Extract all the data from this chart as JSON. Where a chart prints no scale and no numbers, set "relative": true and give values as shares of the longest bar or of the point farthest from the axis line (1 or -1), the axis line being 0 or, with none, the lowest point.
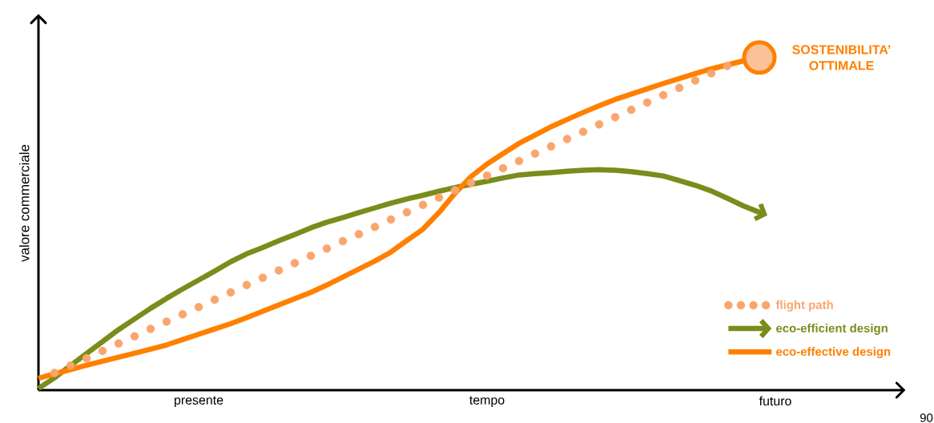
{
  "chart_data": {
    "type": "line",
    "relative": true,
    "ylabel": "valore commerciale",
    "categories": [
      null,
      null,
      null,
      null,
      null,
      null,
      null,
      null,
      null,
      null,
      "presente",
      null,
      null,
      null,
      null,
      null,
      null,
      null,
      null,
      null,
      null,
      null,
      null,
      null,
      null,
      null,
      null,
      null,
      "tempo",
      null,
      null,
      null,
      null,
      null,
      null,
      null,
      null,
      null,
      null,
      null,
      null,
      null,
      null,
      null,
      null,
      null,
      "futuro",
      null,
      null,
      null,
      null,
      null,
      null,
      null,
      null
    ],
    "legend": "bottom right",
    "annotations": [
      "SOSTENIBILITA’ OTTIMALE",
      "90"
    ],
    "series": [
      {
        "name": "flight path",
        "color": "#f9a66c",
        "type": "scatter",
        "marker": "circle",
        "values": [
          null,
          0.052,
          0.074,
          0.096,
          0.118,
          0.14,
          0.162,
          0.184,
          0.206,
          0.228,
          0.25,
          0.272,
          0.294,
          0.316,
          0.338,
          0.36,
          0.382,
          0.404,
          0.426,
          0.448,
          0.469,
          0.491,
          0.513,
          0.535,
          0.557,
          0.579,
          0.601,
          0.623,
          0.645,
          0.667,
          0.689,
          0.711,
          0.733,
          0.755,
          0.777,
          0.799,
          0.821,
          0.843,
          0.865,
          0.887,
          0.909,
          0.931,
          0.953,
          0.975,
          null,
          null,
          null,
          null,
          null,
          null,
          null,
          null,
          null,
          null,
          null
        ]
      },
      {
        "name": "eco-efficient design",
        "color": "#7a8c1a",
        "values": [
          0.005,
          0.037,
          0.074,
          0.11,
          0.146,
          0.182,
          0.214,
          0.246,
          0.276,
          0.304,
          0.331,
          0.358,
          0.386,
          0.41,
          0.429,
          0.449,
          0.468,
          0.488,
          0.505,
          0.519,
          0.534,
          0.548,
          0.562,
          0.575,
          0.586,
          0.598,
          0.609,
          0.619,
          0.628,
          0.638,
          0.647,
          0.651,
          0.654,
          0.658,
          0.661,
          0.663,
          0.661,
          0.657,
          0.651,
          0.644,
          0.63,
          0.616,
          0.599,
          0.577,
          0.554,
          0.535,
          null,
          null,
          null,
          null,
          null,
          null,
          null,
          null,
          null
        ]
      },
      {
        "name": "eco-effective design",
        "color": "#ff8000",
        "values": [
          0.036,
          0.049,
          0.062,
          0.075,
          0.087,
          0.099,
          0.111,
          0.123,
          0.136,
          0.152,
          0.168,
          0.184,
          0.2,
          0.218,
          0.237,
          0.256,
          0.275,
          0.294,
          0.316,
          0.34,
          0.364,
          0.388,
          0.415,
          0.45,
          0.484,
          0.534,
          0.592,
          0.642,
          0.68,
          0.711,
          0.742,
          0.767,
          0.792,
          0.814,
          0.835,
          0.855,
          0.874,
          0.89,
          0.906,
          0.922,
          0.937,
          0.952,
          0.966,
          0.978,
          0.99,
          1,
          null,
          null,
          null,
          null,
          null,
          null,
          null,
          null,
          null
        ]
      }
    ]
  }
}
